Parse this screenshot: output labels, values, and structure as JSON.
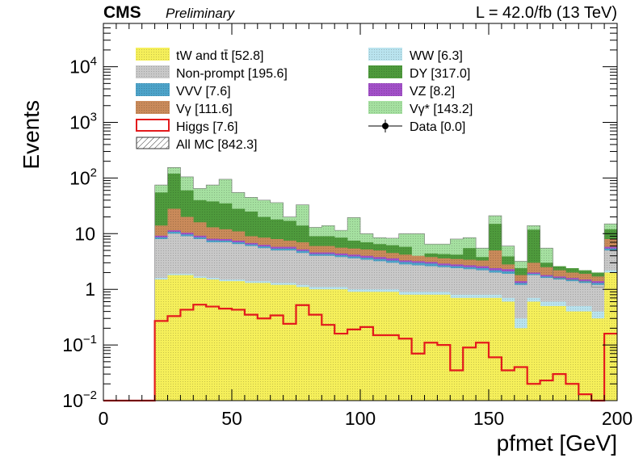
{
  "header": {
    "cms": "CMS",
    "preliminary": "Preliminary",
    "lumi": "L = 42.0/fb (13 TeV)"
  },
  "colors": {
    "tw_ttbar": "#f5ef5a",
    "nonprompt": "#c8c8c8",
    "vvv": "#4da3c9",
    "vgamma": "#c98a5a",
    "higgs": "#e31a1c",
    "ww": "#b9e3ee",
    "dy": "#4e9a3c",
    "vz": "#a250c8",
    "vgammastar": "#a5e0a0",
    "allmc_hatch": "#555555"
  },
  "legend": [
    {
      "key": "tw_ttbar",
      "label": "tW and tt̄ [52.8]",
      "style": "fill"
    },
    {
      "key": "nonprompt",
      "label": "Non-prompt [195.6]",
      "style": "fill"
    },
    {
      "key": "vvv",
      "label": "VVV [7.6]",
      "style": "fill"
    },
    {
      "key": "vgamma",
      "label": "Vγ [111.6]",
      "style": "fill"
    },
    {
      "key": "higgs",
      "label": "Higgs [7.6]",
      "style": "line"
    },
    {
      "key": "allmc",
      "label": "All MC [842.3]",
      "style": "hatch"
    },
    {
      "key": "ww",
      "label": "WW [6.3]",
      "style": "fill"
    },
    {
      "key": "dy",
      "label": "DY [317.0]",
      "style": "fill"
    },
    {
      "key": "vz",
      "label": "VZ [8.2]",
      "style": "fill"
    },
    {
      "key": "vgammastar",
      "label": "Vγ* [143.2]",
      "style": "fill"
    },
    {
      "key": "data",
      "label": "Data [0.0]",
      "style": "marker"
    }
  ],
  "chart_data": {
    "type": "histogram-stack",
    "xlabel": "pfmet [GeV]",
    "ylabel": "Events",
    "log_y": true,
    "xlim": [
      0,
      200
    ],
    "ylim": [
      0.01,
      60000
    ],
    "x_ticks": [
      0,
      50,
      100,
      150,
      200
    ],
    "y_ticks": [
      {
        "value": 0.01,
        "base": "10",
        "exp": "−2"
      },
      {
        "value": 0.1,
        "base": "10",
        "exp": "−1"
      },
      {
        "value": 1,
        "base": "1",
        "exp": ""
      },
      {
        "value": 10,
        "base": "10",
        "exp": ""
      },
      {
        "value": 100,
        "base": "10",
        "exp": "2"
      },
      {
        "value": 1000,
        "base": "10",
        "exp": "3"
      },
      {
        "value": 10000,
        "base": "10",
        "exp": "4"
      }
    ],
    "bin_edges": [
      0,
      5,
      10,
      15,
      20,
      25,
      30,
      35,
      40,
      45,
      50,
      55,
      60,
      65,
      70,
      75,
      80,
      85,
      90,
      95,
      100,
      105,
      110,
      115,
      120,
      125,
      130,
      135,
      140,
      145,
      150,
      155,
      160,
      165,
      170,
      175,
      180,
      185,
      190,
      195,
      200
    ],
    "stack_order": [
      "tw_ttbar",
      "ww",
      "nonprompt",
      "vvv",
      "vz",
      "vgamma",
      "dy",
      "vgammastar"
    ],
    "cumulative": {
      "tw_ttbar": [
        0,
        0,
        0,
        0,
        1.5,
        1.8,
        1.8,
        1.6,
        1.5,
        1.4,
        1.4,
        1.3,
        1.3,
        1.2,
        1.2,
        1.1,
        1.0,
        1.0,
        1.0,
        0.9,
        0.9,
        0.9,
        0.9,
        0.8,
        0.8,
        0.8,
        0.8,
        0.7,
        0.7,
        0.7,
        0.7,
        0.6,
        0.2,
        0.6,
        0.5,
        0.5,
        0.4,
        0.4,
        0.3,
        2.0
      ],
      "ww": [
        0,
        0,
        0,
        0,
        1.6,
        1.9,
        1.9,
        1.7,
        1.6,
        1.5,
        1.5,
        1.4,
        1.4,
        1.3,
        1.3,
        1.2,
        1.1,
        1.1,
        1.1,
        1.0,
        1.0,
        1.0,
        1.0,
        0.9,
        0.9,
        0.9,
        0.9,
        0.8,
        0.8,
        0.8,
        0.8,
        0.7,
        0.3,
        0.7,
        0.6,
        0.6,
        0.5,
        0.5,
        0.4,
        2.2
      ],
      "nonprompt": [
        0,
        0,
        0,
        0,
        8,
        10,
        9,
        8,
        7,
        7,
        6.5,
        6,
        5.5,
        5,
        5,
        4.5,
        4,
        4,
        3.8,
        3.6,
        3.4,
        3.2,
        3.0,
        2.8,
        2.7,
        2.6,
        2.5,
        2.4,
        2.3,
        2.2,
        2.0,
        1.9,
        1.2,
        1.8,
        1.6,
        1.5,
        1.4,
        1.3,
        1.2,
        5
      ],
      "vvv": [
        0,
        0,
        0,
        0,
        8.6,
        10.8,
        9.7,
        8.6,
        7.6,
        7.5,
        7.0,
        6.4,
        5.9,
        5.4,
        5.4,
        4.9,
        4.3,
        4.3,
        4.1,
        3.9,
        3.7,
        3.5,
        3.3,
        3.1,
        3.0,
        2.9,
        2.7,
        2.6,
        2.5,
        2.4,
        2.2,
        2.1,
        1.3,
        1.9,
        1.7,
        1.6,
        1.5,
        1.4,
        1.3,
        5.4
      ],
      "vz": [
        0,
        0,
        0,
        0,
        9.2,
        11.5,
        10.4,
        9.2,
        8.1,
        8.0,
        7.5,
        6.8,
        6.3,
        5.8,
        5.8,
        5.2,
        4.6,
        4.6,
        4.4,
        4.2,
        4.0,
        3.8,
        3.6,
        3.3,
        3.2,
        3.1,
        2.9,
        2.8,
        2.7,
        2.6,
        2.4,
        2.3,
        1.4,
        2.0,
        1.8,
        1.7,
        1.6,
        1.5,
        1.4,
        5.8
      ],
      "vgamma": [
        0,
        0,
        0,
        0,
        14,
        28,
        20,
        16,
        13,
        12,
        11,
        9,
        8.5,
        8,
        7.5,
        7,
        6,
        6,
        5.6,
        5.4,
        5.2,
        5.0,
        4.5,
        4.2,
        4.0,
        3.8,
        3.6,
        3.5,
        3.4,
        3.3,
        5.0,
        2.8,
        1.8,
        3.0,
        2.5,
        2.2,
        2.0,
        1.9,
        1.7,
        8
      ],
      "dy": [
        0,
        0,
        0,
        0,
        55,
        120,
        60,
        40,
        38,
        35,
        28,
        25,
        20,
        18,
        17,
        14,
        9,
        9,
        8.5,
        7.5,
        7.0,
        6.5,
        6.2,
        5.8,
        2.4,
        4.4,
        4.3,
        4.2,
        5.5,
        3.8,
        15,
        3.9,
        2.4,
        11.8,
        3.0,
        2.6,
        2.4,
        2.2,
        2.0,
        12
      ],
      "vgammastar": [
        0,
        0,
        0,
        0,
        75,
        155,
        105,
        65,
        75,
        95,
        55,
        45,
        40,
        36,
        20,
        33,
        13,
        14,
        11.5,
        19.5,
        10,
        8.5,
        8.3,
        10,
        10,
        6.5,
        6.5,
        8,
        8.5,
        5.5,
        21,
        6,
        3.2,
        14,
        5.5,
        1.6,
        1.5,
        1.4,
        1.1,
        15
      ]
    },
    "higgs": [
      0.01,
      0.01,
      0.01,
      0.01,
      0.27,
      0.33,
      0.43,
      0.53,
      0.49,
      0.45,
      0.43,
      0.35,
      0.3,
      0.34,
      0.24,
      0.52,
      0.35,
      0.23,
      0.16,
      0.19,
      0.21,
      0.15,
      0.15,
      0.13,
      0.07,
      0.11,
      0.1,
      0.035,
      0.09,
      0.11,
      0.06,
      0.035,
      0.04,
      0.02,
      0.023,
      0.03,
      0.02,
      0.013,
      0.01,
      0.16
    ],
    "data": []
  }
}
